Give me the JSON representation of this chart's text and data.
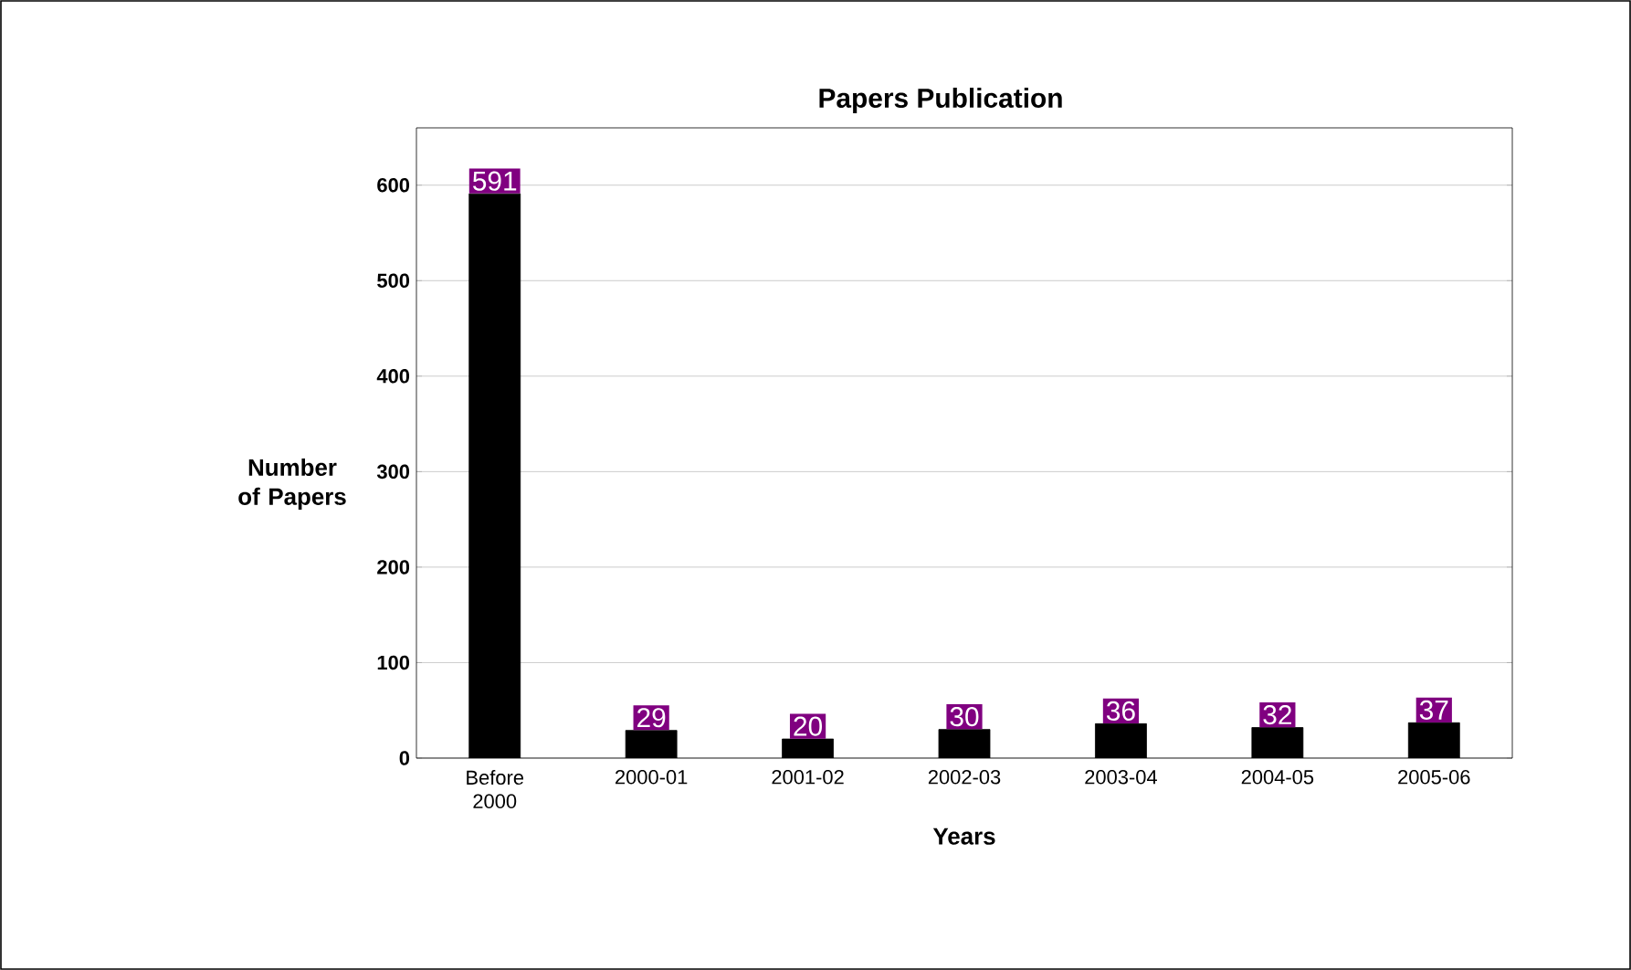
{
  "chart_data": {
    "type": "bar",
    "title": "Papers Publication",
    "xlabel": "Years",
    "ylabel": "Number of Papers",
    "categories": [
      "Before 2000",
      "2000-01",
      "2001-02",
      "2002-03",
      "2003-04",
      "2004-05",
      "2005-06"
    ],
    "values": [
      591,
      29,
      20,
      30,
      36,
      32,
      37
    ],
    "color": "#000000",
    "ylim": [
      0,
      600
    ],
    "yticks": [
      0,
      100,
      200,
      300,
      400,
      500,
      600
    ],
    "grid": "y",
    "data_labels": true
  }
}
